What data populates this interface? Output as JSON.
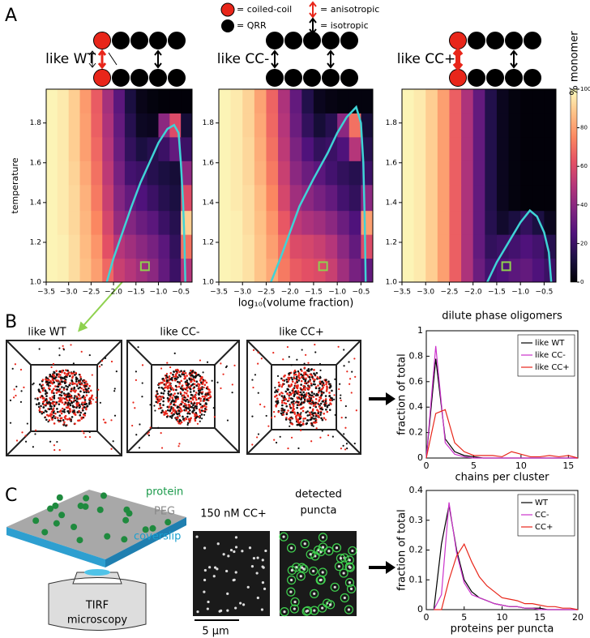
{
  "panel_labels": [
    "A",
    "B",
    "C"
  ],
  "key": {
    "coiled_coil": "= coiled-coil",
    "qrr": "= QRR",
    "anisotropic": "= anisotropic",
    "isotropic": "= isotropic"
  },
  "panel_b": {
    "box_titles": [
      "like WT",
      "like CC-",
      "like CC+"
    ]
  },
  "panel_c": {
    "protein": "protein",
    "peg": "PEG",
    "coverslip": "coverslip",
    "tirf_label": [
      "TIRF",
      "microscopy"
    ],
    "image_title": "150 nM CC+",
    "detected_title": [
      "detected",
      "puncta"
    ],
    "scale_bar": "5 μm"
  },
  "chart_data": [
    {
      "type": "heatmap",
      "title": "like WT",
      "ylabel": "temperature",
      "x_bins": [
        -3.5,
        -3.25,
        -3,
        -2.75,
        -2.5,
        -2.25,
        -2,
        -1.75,
        -1.5,
        -1.25,
        -1,
        -0.75,
        -0.5,
        -0.25
      ],
      "y_bins": [
        1.0,
        1.12,
        1.24,
        1.36,
        1.49,
        1.61,
        1.73,
        1.85,
        1.97
      ],
      "z": [
        [
          98,
          97,
          93,
          87,
          80,
          68,
          55,
          50,
          45,
          40,
          30,
          20,
          50
        ],
        [
          98,
          97,
          93,
          86,
          78,
          62,
          50,
          45,
          40,
          35,
          28,
          18,
          70
        ],
        [
          98,
          96,
          92,
          85,
          75,
          58,
          42,
          38,
          32,
          28,
          20,
          15,
          90
        ],
        [
          98,
          96,
          92,
          84,
          72,
          55,
          38,
          30,
          25,
          20,
          15,
          12,
          60
        ],
        [
          98,
          96,
          91,
          82,
          70,
          52,
          35,
          22,
          20,
          15,
          12,
          10,
          40
        ],
        [
          98,
          96,
          90,
          80,
          68,
          50,
          32,
          18,
          12,
          15,
          20,
          30,
          20
        ],
        [
          98,
          96,
          90,
          80,
          66,
          48,
          30,
          15,
          6,
          5,
          40,
          60,
          10
        ],
        [
          98,
          96,
          90,
          79,
          65,
          46,
          28,
          12,
          4,
          2,
          1,
          1,
          1
        ]
      ],
      "boundary": {
        "color": "#3fd3d6",
        "x": [
          -2.15,
          -2.0,
          -1.8,
          -1.6,
          -1.4,
          -1.2,
          -1.0,
          -0.8,
          -0.65,
          -0.55,
          -0.5,
          -0.45,
          -0.42,
          -0.4
        ],
        "y": [
          1.0,
          1.12,
          1.25,
          1.38,
          1.5,
          1.6,
          1.7,
          1.77,
          1.79,
          1.75,
          1.6,
          1.4,
          1.2,
          1.0
        ]
      },
      "highlight": {
        "x": -1.3,
        "y": 1.08,
        "color": "#8fd14f"
      },
      "xlim": [
        -3.5,
        -0.25
      ],
      "ylim": [
        1.0,
        1.97
      ],
      "xticks": [
        {
          "value": -3.5,
          "label": "−3.5"
        },
        {
          "value": -3,
          "label": "−3.0"
        },
        {
          "value": -2.5,
          "label": "−2.5"
        },
        {
          "value": -2,
          "label": "−2.0"
        },
        {
          "value": -1.5,
          "label": "−1.5"
        },
        {
          "value": -1,
          "label": "−1.0"
        },
        {
          "value": -0.5,
          "label": "−0.5"
        }
      ],
      "yticks": [
        {
          "value": 1,
          "label": "1.0"
        },
        1.2,
        1.4,
        1.6,
        1.8
      ]
    },
    {
      "type": "heatmap",
      "title": "like CC-",
      "xlabel": "log₁₀(volume fraction)",
      "x_bins": [
        -3.5,
        -3.25,
        -3,
        -2.75,
        -2.5,
        -2.25,
        -2,
        -1.75,
        -1.5,
        -1.25,
        -1,
        -0.75,
        -0.5,
        -0.25
      ],
      "y_bins": [
        1.0,
        1.12,
        1.24,
        1.36,
        1.49,
        1.61,
        1.73,
        1.85,
        1.97
      ],
      "z": [
        [
          98,
          97,
          94,
          88,
          82,
          72,
          65,
          62,
          60,
          55,
          45,
          35,
          30
        ],
        [
          98,
          97,
          94,
          88,
          80,
          70,
          60,
          58,
          55,
          50,
          40,
          30,
          60
        ],
        [
          98,
          97,
          93,
          87,
          78,
          64,
          52,
          48,
          45,
          40,
          32,
          25,
          80
        ],
        [
          98,
          96,
          93,
          86,
          75,
          58,
          45,
          40,
          35,
          30,
          22,
          18,
          40
        ],
        [
          98,
          96,
          92,
          84,
          72,
          55,
          40,
          32,
          28,
          22,
          18,
          15,
          20
        ],
        [
          98,
          96,
          92,
          83,
          70,
          52,
          36,
          25,
          18,
          20,
          25,
          50,
          15
        ],
        [
          98,
          96,
          91,
          82,
          68,
          50,
          32,
          18,
          10,
          15,
          40,
          70,
          10
        ],
        [
          98,
          96,
          91,
          81,
          67,
          48,
          30,
          14,
          5,
          3,
          2,
          2,
          2
        ]
      ],
      "boundary": {
        "color": "#3fd3d6",
        "x": [
          -2.4,
          -2.2,
          -2.0,
          -1.8,
          -1.5,
          -1.2,
          -1.0,
          -0.8,
          -0.6,
          -0.5,
          -0.45,
          -0.42,
          -0.4
        ],
        "y": [
          1.0,
          1.12,
          1.25,
          1.38,
          1.52,
          1.65,
          1.75,
          1.83,
          1.88,
          1.8,
          1.6,
          1.3,
          1.0
        ]
      },
      "highlight": {
        "x": -1.3,
        "y": 1.08,
        "color": "#8fd14f"
      },
      "xlim": [
        -3.5,
        -0.25
      ],
      "ylim": [
        1.0,
        1.97
      ],
      "xticks": [
        {
          "value": -3.5,
          "label": "−3.5"
        },
        {
          "value": -3,
          "label": "−3.0"
        },
        {
          "value": -2.5,
          "label": "−2.5"
        },
        {
          "value": -2,
          "label": "−2.0"
        },
        {
          "value": -1.5,
          "label": "−1.5"
        },
        {
          "value": -1,
          "label": "−1.0"
        },
        {
          "value": -0.5,
          "label": "−0.5"
        }
      ],
      "yticks": [
        {
          "value": 1,
          "label": "1.0"
        },
        1.2,
        1.4,
        1.6,
        1.8
      ]
    },
    {
      "type": "heatmap",
      "title": "like CC+",
      "x_bins": [
        -3.5,
        -3.25,
        -3,
        -2.75,
        -2.5,
        -2.25,
        -2,
        -1.75,
        -1.5,
        -1.25,
        -1,
        -0.75,
        -0.5,
        -0.25
      ],
      "y_bins": [
        1.0,
        1.12,
        1.24,
        1.36,
        1.49,
        1.61,
        1.73,
        1.85,
        1.97
      ],
      "z": [
        [
          98,
          96,
          90,
          80,
          66,
          48,
          32,
          22,
          25,
          28,
          30,
          25,
          20
        ],
        [
          98,
          96,
          90,
          80,
          66,
          48,
          30,
          18,
          20,
          22,
          25,
          22,
          15
        ],
        [
          98,
          96,
          90,
          80,
          66,
          48,
          30,
          15,
          8,
          12,
          18,
          12,
          5
        ],
        [
          98,
          96,
          90,
          80,
          66,
          48,
          30,
          14,
          5,
          2,
          1,
          1,
          1
        ],
        [
          98,
          96,
          90,
          80,
          66,
          48,
          30,
          14,
          5,
          2,
          1,
          1,
          1
        ],
        [
          98,
          96,
          90,
          80,
          66,
          48,
          30,
          14,
          5,
          2,
          1,
          1,
          1
        ],
        [
          98,
          96,
          90,
          80,
          66,
          48,
          30,
          14,
          5,
          2,
          1,
          1,
          1
        ],
        [
          98,
          96,
          90,
          80,
          66,
          48,
          30,
          14,
          5,
          2,
          1,
          1,
          1
        ]
      ],
      "boundary": {
        "color": "#3fd3d6",
        "x": [
          -1.7,
          -1.5,
          -1.25,
          -1.0,
          -0.8,
          -0.65,
          -0.5,
          -0.4,
          -0.35
        ],
        "y": [
          1.0,
          1.1,
          1.2,
          1.3,
          1.36,
          1.33,
          1.25,
          1.15,
          1.0
        ]
      },
      "highlight": {
        "x": -1.3,
        "y": 1.08,
        "color": "#8fd14f"
      },
      "xlim": [
        -3.5,
        -0.25
      ],
      "ylim": [
        1.0,
        1.97
      ],
      "xticks": [
        {
          "value": -3.5,
          "label": "−3.5"
        },
        {
          "value": -3,
          "label": "−3.0"
        },
        {
          "value": -2.5,
          "label": "−2.5"
        },
        {
          "value": -2,
          "label": "−2.0"
        },
        {
          "value": -1.5,
          "label": "−1.5"
        },
        {
          "value": -1,
          "label": "−1.0"
        },
        {
          "value": -0.5,
          "label": "−0.5"
        }
      ],
      "yticks": [
        {
          "value": 1,
          "label": "1.0"
        },
        1.2,
        1.4,
        1.6,
        1.8
      ],
      "colorbar": {
        "label": "% monomer",
        "lim": [
          0,
          100
        ],
        "ticks": [
          0,
          20,
          40,
          60,
          80,
          100
        ],
        "colormap": [
          "#000004",
          "#1c1044",
          "#4f127b",
          "#812581",
          "#b5367a",
          "#e55064",
          "#fb8761",
          "#fec287",
          "#fcfdbf"
        ]
      }
    },
    {
      "type": "line",
      "title": "dilute phase oligomers",
      "xlabel": "chains per cluster",
      "ylabel": "fraction of total",
      "x": [
        0,
        1,
        2,
        3,
        4,
        5,
        6,
        7,
        8,
        9,
        10,
        11,
        12,
        13,
        14,
        15,
        16
      ],
      "series": [
        {
          "name": "like WT",
          "color": "#000000",
          "values": [
            0,
            0.78,
            0.15,
            0.05,
            0.02,
            0.01,
            0,
            0,
            0,
            0,
            0,
            0,
            0,
            0,
            0,
            0,
            0
          ]
        },
        {
          "name": "like CC-",
          "color": "#cc33cc",
          "values": [
            0,
            0.88,
            0.12,
            0.03,
            0.01,
            0,
            0,
            0,
            0,
            0,
            0,
            0,
            0,
            0,
            0,
            0,
            0
          ]
        },
        {
          "name": "like CC+",
          "color": "#e8261a",
          "values": [
            0,
            0.35,
            0.38,
            0.12,
            0.05,
            0.02,
            0.02,
            0.02,
            0.01,
            0.05,
            0.03,
            0.01,
            0.01,
            0.02,
            0.01,
            0.02,
            0
          ]
        }
      ],
      "xlim": [
        0,
        16
      ],
      "ylim": [
        0,
        1
      ],
      "xticks": [
        0,
        5,
        10,
        15
      ],
      "yticks": [
        0,
        0.2,
        0.4,
        0.6,
        0.8,
        1
      ],
      "legend": "upper right"
    },
    {
      "type": "line",
      "xlabel": "proteins per puncta",
      "ylabel": "fraction of total",
      "x": [
        1,
        2,
        3,
        4,
        5,
        6,
        7,
        8,
        9,
        10,
        11,
        12,
        13,
        14,
        15,
        16,
        17,
        18,
        19,
        20
      ],
      "series": [
        {
          "name": "WT",
          "color": "#000000",
          "values": [
            0,
            0.22,
            0.35,
            0.2,
            0.1,
            0.06,
            0.04,
            0.03,
            0.02,
            0.015,
            0.01,
            0.01,
            0.005,
            0.005,
            0.005,
            0,
            0,
            0,
            0,
            0
          ]
        },
        {
          "name": "CC-",
          "color": "#cc33cc",
          "values": [
            0,
            0.05,
            0.36,
            0.19,
            0.09,
            0.05,
            0.04,
            0.03,
            0.02,
            0.015,
            0.01,
            0.01,
            0.005,
            0.005,
            0,
            0,
            0,
            0,
            0,
            0
          ]
        },
        {
          "name": "CC+",
          "color": "#e8261a",
          "values": [
            0,
            0,
            0.1,
            0.18,
            0.22,
            0.16,
            0.11,
            0.08,
            0.06,
            0.04,
            0.035,
            0.03,
            0.02,
            0.02,
            0.015,
            0.01,
            0.01,
            0.005,
            0.005,
            0
          ]
        }
      ],
      "xlim": [
        0,
        20
      ],
      "ylim": [
        0,
        0.4
      ],
      "xticks": [
        0,
        5,
        10,
        15,
        20
      ],
      "yticks": [
        0,
        0.1,
        0.2,
        0.3,
        0.4
      ],
      "legend": "upper right"
    }
  ]
}
